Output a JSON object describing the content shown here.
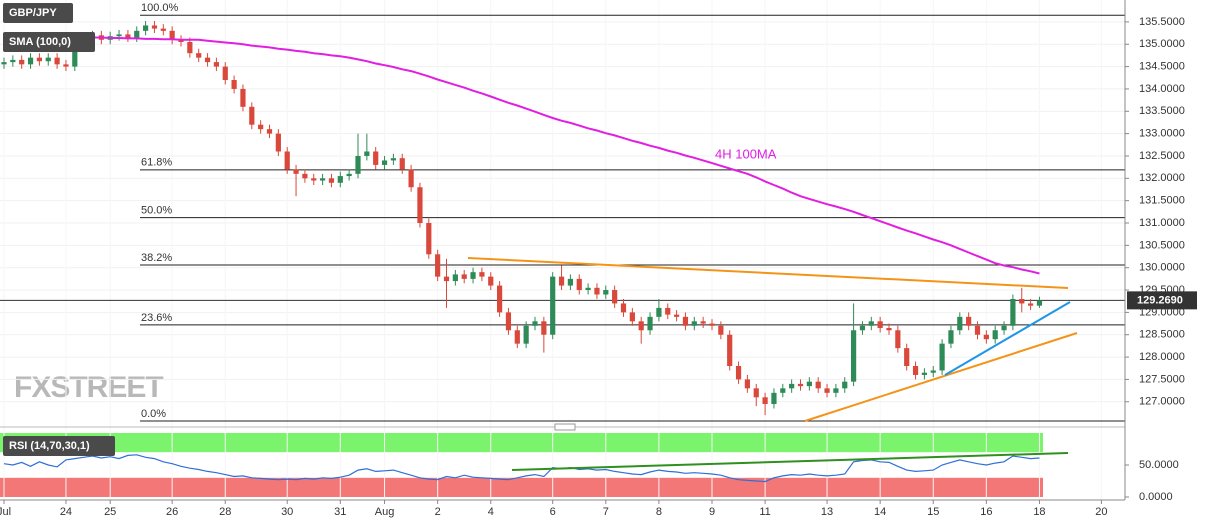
{
  "chart_data": {
    "type": "candlestick",
    "title": "GBP/JPY",
    "watermark": "FXSTREET",
    "up_color": "#2e8b57",
    "down_color": "#d9483b",
    "categories": [
      "Jul",
      null,
      null,
      null,
      null,
      null,
      null,
      "24",
      null,
      null,
      null,
      null,
      "25",
      null,
      null,
      null,
      null,
      null,
      null,
      "26",
      null,
      null,
      null,
      null,
      null,
      "28",
      null,
      null,
      null,
      null,
      null,
      null,
      "30",
      null,
      null,
      null,
      null,
      null,
      "31",
      null,
      null,
      null,
      null,
      "Aug",
      null,
      null,
      null,
      null,
      null,
      "2",
      null,
      null,
      null,
      null,
      null,
      "4",
      null,
      null,
      null,
      null,
      null,
      null,
      "6",
      null,
      null,
      null,
      null,
      null,
      "7",
      null,
      null,
      null,
      null,
      null,
      "8",
      null,
      null,
      null,
      null,
      null,
      "9",
      null,
      null,
      null,
      null,
      null,
      "11",
      null,
      null,
      null,
      null,
      null,
      null,
      "13",
      null,
      null,
      null,
      null,
      null,
      "14",
      null,
      null,
      null,
      null,
      null,
      "15",
      null,
      null,
      null,
      null,
      null,
      "16",
      null,
      null,
      null,
      null,
      null,
      "18",
      null,
      null,
      null,
      null,
      null,
      null,
      "20",
      null
    ],
    "ohlc": [
      [
        134.55,
        134.7,
        134.45,
        134.6
      ],
      [
        134.6,
        134.75,
        134.5,
        134.65
      ],
      [
        134.65,
        134.75,
        134.45,
        134.55
      ],
      [
        134.55,
        134.8,
        134.45,
        134.7
      ],
      [
        134.7,
        134.8,
        134.52,
        134.62
      ],
      [
        134.62,
        134.8,
        134.52,
        134.7
      ],
      [
        134.7,
        134.8,
        134.45,
        134.55
      ],
      [
        134.55,
        134.65,
        134.4,
        134.5
      ],
      [
        134.5,
        135.2,
        134.4,
        135.1
      ],
      [
        135.1,
        135.25,
        135.0,
        135.15
      ],
      [
        135.15,
        135.3,
        135.05,
        135.2
      ],
      [
        135.2,
        135.3,
        135.0,
        135.1
      ],
      [
        135.1,
        135.28,
        135.0,
        135.18
      ],
      [
        135.18,
        135.32,
        135.08,
        135.22
      ],
      [
        135.22,
        135.32,
        135.05,
        135.15
      ],
      [
        135.15,
        135.4,
        135.05,
        135.3
      ],
      [
        135.3,
        135.52,
        135.2,
        135.42
      ],
      [
        135.42,
        135.52,
        135.25,
        135.35
      ],
      [
        135.35,
        135.45,
        135.2,
        135.3
      ],
      [
        135.3,
        135.4,
        135.0,
        135.1
      ],
      [
        135.1,
        135.2,
        134.95,
        135.05
      ],
      [
        135.05,
        135.15,
        134.7,
        134.8
      ],
      [
        134.8,
        134.9,
        134.6,
        134.7
      ],
      [
        134.7,
        134.8,
        134.5,
        134.6
      ],
      [
        134.6,
        134.7,
        134.4,
        134.5
      ],
      [
        134.5,
        134.6,
        134.1,
        134.2
      ],
      [
        134.2,
        134.3,
        133.9,
        134.0
      ],
      [
        134.0,
        134.1,
        133.5,
        133.6
      ],
      [
        133.6,
        133.7,
        133.1,
        133.2
      ],
      [
        133.2,
        133.3,
        133.0,
        133.1
      ],
      [
        133.1,
        133.2,
        132.9,
        133.0
      ],
      [
        133.0,
        133.1,
        132.5,
        132.6
      ],
      [
        132.6,
        132.7,
        132.1,
        132.2
      ],
      [
        132.2,
        132.3,
        131.6,
        132.1
      ],
      [
        132.1,
        132.2,
        131.9,
        132.0
      ],
      [
        132.0,
        132.1,
        131.85,
        131.95
      ],
      [
        131.95,
        132.1,
        131.85,
        132.0
      ],
      [
        132.0,
        132.1,
        131.8,
        131.9
      ],
      [
        131.9,
        132.15,
        131.8,
        132.05
      ],
      [
        132.05,
        132.2,
        131.95,
        132.1
      ],
      [
        132.1,
        133.0,
        132.0,
        132.5
      ],
      [
        132.5,
        133.0,
        132.4,
        132.6
      ],
      [
        132.6,
        132.7,
        132.2,
        132.3
      ],
      [
        132.3,
        132.5,
        132.2,
        132.4
      ],
      [
        132.4,
        132.55,
        132.3,
        132.45
      ],
      [
        132.45,
        132.55,
        132.1,
        132.2
      ],
      [
        132.2,
        132.3,
        131.7,
        131.8
      ],
      [
        131.8,
        131.9,
        130.9,
        131.0
      ],
      [
        131.0,
        131.1,
        130.2,
        130.3
      ],
      [
        130.3,
        130.4,
        129.7,
        129.8
      ],
      [
        129.8,
        130.2,
        129.1,
        129.7
      ],
      [
        129.7,
        129.95,
        129.6,
        129.85
      ],
      [
        129.85,
        129.95,
        129.65,
        129.75
      ],
      [
        129.75,
        130.0,
        129.65,
        129.9
      ],
      [
        129.9,
        130.0,
        129.7,
        129.8
      ],
      [
        129.8,
        129.9,
        129.5,
        129.6
      ],
      [
        129.6,
        129.7,
        128.9,
        129.0
      ],
      [
        129.0,
        129.1,
        128.5,
        128.6
      ],
      [
        128.6,
        128.7,
        128.2,
        128.3
      ],
      [
        128.3,
        128.8,
        128.2,
        128.7
      ],
      [
        128.7,
        128.9,
        128.6,
        128.8
      ],
      [
        128.8,
        128.9,
        128.1,
        128.5
      ],
      [
        128.5,
        129.9,
        128.4,
        129.8
      ],
      [
        129.8,
        130.05,
        129.5,
        129.6
      ],
      [
        129.6,
        129.85,
        129.5,
        129.75
      ],
      [
        129.75,
        129.85,
        129.4,
        129.5
      ],
      [
        129.5,
        129.65,
        129.4,
        129.55
      ],
      [
        129.55,
        129.65,
        129.3,
        129.4
      ],
      [
        129.4,
        129.6,
        129.3,
        129.5
      ],
      [
        129.5,
        129.6,
        129.1,
        129.2
      ],
      [
        129.2,
        129.3,
        128.9,
        129.0
      ],
      [
        129.0,
        129.1,
        128.7,
        128.8
      ],
      [
        128.8,
        128.9,
        128.3,
        128.6
      ],
      [
        128.6,
        129.0,
        128.5,
        128.9
      ],
      [
        128.9,
        129.3,
        128.8,
        129.1
      ],
      [
        129.1,
        129.2,
        128.85,
        128.95
      ],
      [
        128.95,
        129.05,
        128.8,
        128.9
      ],
      [
        128.9,
        129.0,
        128.6,
        128.7
      ],
      [
        128.7,
        128.9,
        128.6,
        128.8
      ],
      [
        128.8,
        128.9,
        128.65,
        128.75
      ],
      [
        128.75,
        128.85,
        128.6,
        128.7
      ],
      [
        128.7,
        128.8,
        128.4,
        128.5
      ],
      [
        128.5,
        128.6,
        127.7,
        127.8
      ],
      [
        127.8,
        127.9,
        127.4,
        127.5
      ],
      [
        127.5,
        127.6,
        127.2,
        127.3
      ],
      [
        127.3,
        127.4,
        126.9,
        127.1
      ],
      [
        127.1,
        127.2,
        126.7,
        126.95
      ],
      [
        126.95,
        127.3,
        126.85,
        127.2
      ],
      [
        127.2,
        127.4,
        127.1,
        127.3
      ],
      [
        127.3,
        127.5,
        127.2,
        127.4
      ],
      [
        127.4,
        127.5,
        127.25,
        127.35
      ],
      [
        127.35,
        127.55,
        127.25,
        127.45
      ],
      [
        127.45,
        127.55,
        127.2,
        127.3
      ],
      [
        127.3,
        127.4,
        127.1,
        127.2
      ],
      [
        127.2,
        127.4,
        127.1,
        127.3
      ],
      [
        127.3,
        127.55,
        127.2,
        127.45
      ],
      [
        127.45,
        129.2,
        127.35,
        128.6
      ],
      [
        128.6,
        128.8,
        128.5,
        128.7
      ],
      [
        128.7,
        128.9,
        128.6,
        128.8
      ],
      [
        128.8,
        128.9,
        128.55,
        128.65
      ],
      [
        128.65,
        128.75,
        128.5,
        128.6
      ],
      [
        128.6,
        128.7,
        128.1,
        128.2
      ],
      [
        128.2,
        128.3,
        127.7,
        127.8
      ],
      [
        127.8,
        127.9,
        127.5,
        127.6
      ],
      [
        127.6,
        127.75,
        127.5,
        127.65
      ],
      [
        127.65,
        127.8,
        127.55,
        127.7
      ],
      [
        127.7,
        128.4,
        127.6,
        128.3
      ],
      [
        128.3,
        128.7,
        128.2,
        128.6
      ],
      [
        128.6,
        129.0,
        128.5,
        128.9
      ],
      [
        128.9,
        129.0,
        128.6,
        128.7
      ],
      [
        128.7,
        128.8,
        128.4,
        128.5
      ],
      [
        128.5,
        128.6,
        128.3,
        128.4
      ],
      [
        128.4,
        128.7,
        128.3,
        128.6
      ],
      [
        128.6,
        128.8,
        128.5,
        128.7
      ],
      [
        128.7,
        129.4,
        128.6,
        129.3
      ],
      [
        129.3,
        129.55,
        129.0,
        129.2
      ],
      [
        129.2,
        129.3,
        129.05,
        129.15
      ],
      [
        129.15,
        129.35,
        129.1,
        129.27
      ],
      null,
      null,
      null,
      null,
      null,
      null,
      null,
      null
    ],
    "series": [
      {
        "name": "SMA (100,0)",
        "color": "#e11ee1",
        "values": [
          135.2,
          135.2,
          135.19,
          135.19,
          135.18,
          135.18,
          135.17,
          135.17,
          135.16,
          135.16,
          135.15,
          135.15,
          135.14,
          135.14,
          135.13,
          135.13,
          135.12,
          135.12,
          135.11,
          135.11,
          135.1,
          135.1,
          135.1,
          135.08,
          135.06,
          135.04,
          135.02,
          135.0,
          134.97,
          134.95,
          134.93,
          134.9,
          134.88,
          134.85,
          134.83,
          134.8,
          134.78,
          134.75,
          134.73,
          134.7,
          134.66,
          134.62,
          134.57,
          134.53,
          134.49,
          134.44,
          134.4,
          134.34,
          134.28,
          134.21,
          134.15,
          134.09,
          134.03,
          133.96,
          133.9,
          133.83,
          133.76,
          133.69,
          133.63,
          133.56,
          133.49,
          133.42,
          133.35,
          133.29,
          133.24,
          133.18,
          133.12,
          133.07,
          133.01,
          132.96,
          132.9,
          132.84,
          132.79,
          132.73,
          132.68,
          132.62,
          132.57,
          132.51,
          132.46,
          132.4,
          132.34,
          132.28,
          132.22,
          132.16,
          132.1,
          132.02,
          131.93,
          131.85,
          131.77,
          131.68,
          131.6,
          131.54,
          131.48,
          131.42,
          131.37,
          131.31,
          131.25,
          131.18,
          131.11,
          131.04,
          130.97,
          130.9,
          130.83,
          130.77,
          130.7,
          130.63,
          130.57,
          130.5,
          130.42,
          130.34,
          130.26,
          130.18,
          130.1,
          130.05,
          130.01,
          129.96,
          129.92,
          129.87,
          null,
          null,
          null,
          null,
          null,
          null,
          null,
          null
        ]
      }
    ],
    "annotations": [
      "4H 100MA"
    ],
    "fib_levels": [
      {
        "label": "100.0%",
        "value": 135.65
      },
      {
        "label": "61.8%",
        "value": 132.19
      },
      {
        "label": "50.0%",
        "value": 131.12
      },
      {
        "label": "38.2%",
        "value": 130.06
      },
      {
        "label": "23.6%",
        "value": 128.72
      },
      {
        "label": "0.0%",
        "value": 126.57
      }
    ],
    "last_price": {
      "value": 129.269,
      "label": "129.2690"
    },
    "ylim": [
      126.48,
      135.99
    ],
    "yticks": [
      {
        "value": 127,
        "label": "127.0000"
      },
      {
        "value": 127.5,
        "label": "127.5000"
      },
      {
        "value": 128,
        "label": "128.0000"
      },
      {
        "value": 128.5,
        "label": "128.5000"
      },
      {
        "value": 129,
        "label": "129.0000"
      },
      {
        "value": 129.5,
        "label": "129.5000"
      },
      {
        "value": 130,
        "label": "130.0000"
      },
      {
        "value": 130.5,
        "label": "130.5000"
      },
      {
        "value": 131,
        "label": "131.0000"
      },
      {
        "value": 131.5,
        "label": "131.5000"
      },
      {
        "value": 132,
        "label": "132.0000"
      },
      {
        "value": 132.5,
        "label": "132.5000"
      },
      {
        "value": 133,
        "label": "133.0000"
      },
      {
        "value": 133.5,
        "label": "133.5000"
      },
      {
        "value": 134,
        "label": "134.0000"
      },
      {
        "value": 134.5,
        "label": "134.5000"
      },
      {
        "value": 135,
        "label": "135.0000"
      },
      {
        "value": 135.5,
        "label": "135.5000"
      }
    ],
    "rsi": {
      "name": "RSI (14,70,30,1)",
      "color": "#2f6fd8",
      "overbought": 70,
      "oversold": 30,
      "ylim": [
        0,
        100
      ],
      "yticks": [
        {
          "value": 0,
          "label": "0.0000"
        },
        {
          "value": 50,
          "label": "50.0000"
        }
      ],
      "values": [
        52,
        50,
        54,
        48,
        55,
        50,
        47,
        58,
        60,
        62,
        64,
        61,
        63,
        60,
        65,
        66,
        62,
        60,
        55,
        52,
        48,
        45,
        43,
        40,
        38,
        35,
        32,
        33,
        30,
        29,
        28,
        27,
        28,
        27,
        29,
        28,
        30,
        29,
        31,
        34,
        42,
        44,
        40,
        41,
        42,
        38,
        34,
        30,
        28,
        27,
        32,
        30,
        34,
        31,
        30,
        29,
        28,
        27,
        30,
        33,
        35,
        32,
        46,
        44,
        46,
        43,
        44,
        42,
        43,
        40,
        38,
        36,
        35,
        39,
        42,
        40,
        39,
        37,
        38,
        37,
        36,
        34,
        30,
        27,
        26,
        25,
        24,
        30,
        33,
        35,
        34,
        36,
        34,
        33,
        34,
        36,
        55,
        57,
        58,
        55,
        54,
        48,
        42,
        40,
        41,
        42,
        50,
        54,
        58,
        55,
        52,
        50,
        53,
        55,
        64,
        62,
        60,
        61,
        null,
        null,
        null,
        null,
        null,
        null,
        null,
        null
      ]
    }
  }
}
